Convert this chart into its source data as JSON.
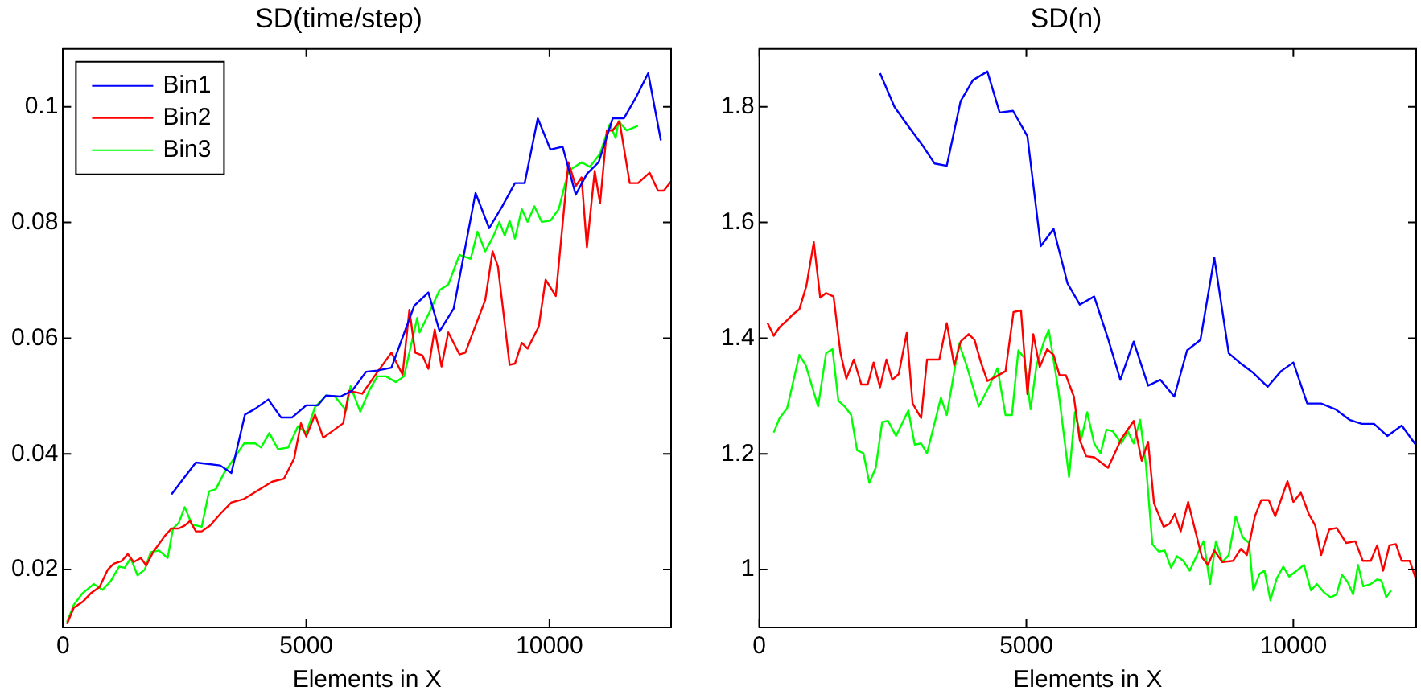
{
  "chart_data": [
    {
      "type": "line",
      "title": "SD(time/step)",
      "xlabel": "Elements in X",
      "xlim": [
        0,
        12500
      ],
      "xticks": [
        0,
        5000,
        10000
      ],
      "ylim": [
        0.01,
        0.11
      ],
      "yticks": [
        0.02,
        0.04,
        0.06,
        0.08,
        0.1
      ],
      "grid": false,
      "legend": "top left",
      "marker": "none",
      "line_style": "solid",
      "series": [
        {
          "name": "Bin1",
          "color": "#0000ff",
          "x": [
            2230,
            2500,
            2730,
            3230,
            3460,
            3740,
            3950,
            4220,
            4480,
            4710,
            5000,
            5240,
            5410,
            5700,
            5940,
            6230,
            6460,
            6750,
            7220,
            7510,
            7740,
            8030,
            8480,
            8760,
            9030,
            9290,
            9490,
            9760,
            10020,
            10270,
            10540,
            10770,
            11010,
            11300,
            11530,
            11770,
            12030,
            12290
          ],
          "values": [
            0.033,
            0.036,
            0.0385,
            0.038,
            0.0367,
            0.0468,
            0.0478,
            0.0494,
            0.0463,
            0.0463,
            0.0484,
            0.0484,
            0.0501,
            0.0499,
            0.0509,
            0.0542,
            0.0544,
            0.0549,
            0.0656,
            0.0679,
            0.0612,
            0.0651,
            0.0851,
            0.079,
            0.0828,
            0.0868,
            0.0868,
            0.098,
            0.0926,
            0.0931,
            0.0848,
            0.0884,
            0.0904,
            0.098,
            0.098,
            0.1015,
            0.1058,
            0.0942
          ]
        },
        {
          "name": "Bin2",
          "color": "#ff0000",
          "x": [
            80,
            220,
            400,
            570,
            750,
            920,
            1040,
            1210,
            1330,
            1450,
            1600,
            1710,
            1850,
            2090,
            2230,
            2380,
            2500,
            2610,
            2730,
            2850,
            3020,
            3230,
            3460,
            3720,
            4010,
            4300,
            4540,
            4750,
            4890,
            5000,
            5180,
            5350,
            5760,
            5880,
            6150,
            6400,
            6750,
            6980,
            7120,
            7240,
            7390,
            7510,
            7640,
            7780,
            7920,
            8150,
            8270,
            8680,
            8830,
            8940,
            9180,
            9290,
            9430,
            9550,
            9780,
            9920,
            10130,
            10390,
            10540,
            10660,
            10770,
            10930,
            11040,
            11180,
            11300,
            11440,
            11650,
            11820,
            12060,
            12230,
            12350,
            12500
          ],
          "values": [
            0.0106,
            0.0134,
            0.0144,
            0.0159,
            0.017,
            0.02,
            0.021,
            0.0215,
            0.0227,
            0.0213,
            0.022,
            0.0207,
            0.023,
            0.0258,
            0.0271,
            0.0271,
            0.0276,
            0.0284,
            0.0266,
            0.0266,
            0.0276,
            0.0296,
            0.0316,
            0.0322,
            0.0337,
            0.0352,
            0.0357,
            0.0392,
            0.0453,
            0.043,
            0.0468,
            0.0428,
            0.0453,
            0.0509,
            0.0504,
            0.0534,
            0.0575,
            0.0537,
            0.0649,
            0.0575,
            0.057,
            0.0547,
            0.0615,
            0.0551,
            0.061,
            0.0572,
            0.0575,
            0.0666,
            0.075,
            0.0724,
            0.0554,
            0.0556,
            0.0592,
            0.0582,
            0.062,
            0.0701,
            0.0673,
            0.0904,
            0.0863,
            0.0878,
            0.0757,
            0.0889,
            0.0833,
            0.0959,
            0.0959,
            0.0975,
            0.0868,
            0.0868,
            0.0886,
            0.0855,
            0.0855,
            0.0871
          ]
        },
        {
          "name": "Bin3",
          "color": "#00ff00",
          "x": [
            80,
            220,
            400,
            630,
            810,
            980,
            1150,
            1270,
            1390,
            1530,
            1680,
            1800,
            1970,
            2150,
            2260,
            2380,
            2500,
            2650,
            2850,
            3000,
            3140,
            3310,
            3490,
            3720,
            3950,
            4070,
            4240,
            4420,
            4630,
            4830,
            5000,
            5180,
            5410,
            5590,
            5820,
            5910,
            6110,
            6290,
            6460,
            6640,
            6840,
            7010,
            7280,
            7330,
            7540,
            7740,
            7920,
            8150,
            8380,
            8520,
            8680,
            8850,
            8970,
            9080,
            9180,
            9290,
            9430,
            9550,
            9690,
            9840,
            10020,
            10190,
            10390,
            10660,
            10830,
            11040,
            11240,
            11360,
            11420,
            11590,
            11820
          ],
          "values": [
            0.0109,
            0.0139,
            0.0159,
            0.0175,
            0.0165,
            0.018,
            0.0205,
            0.0203,
            0.022,
            0.019,
            0.02,
            0.023,
            0.0233,
            0.022,
            0.0271,
            0.0281,
            0.0308,
            0.0278,
            0.0274,
            0.0335,
            0.0339,
            0.0367,
            0.0389,
            0.0418,
            0.0418,
            0.0411,
            0.0436,
            0.0408,
            0.0411,
            0.0448,
            0.0436,
            0.0481,
            0.0501,
            0.0499,
            0.0475,
            0.0517,
            0.0473,
            0.0509,
            0.0534,
            0.0534,
            0.0524,
            0.0534,
            0.0635,
            0.061,
            0.0646,
            0.0683,
            0.0693,
            0.0744,
            0.0737,
            0.0784,
            0.075,
            0.0777,
            0.0801,
            0.0777,
            0.0803,
            0.0772,
            0.0823,
            0.0801,
            0.0828,
            0.0801,
            0.0803,
            0.0823,
            0.0889,
            0.0904,
            0.0896,
            0.0919,
            0.097,
            0.0946,
            0.0975,
            0.0959,
            0.0967
          ]
        }
      ]
    },
    {
      "type": "line",
      "title": "SD(n)",
      "xlabel": "Elements in X",
      "xlim": [
        0,
        12300
      ],
      "xticks": [
        0,
        5000,
        10000
      ],
      "ylim": [
        0.9,
        1.9
      ],
      "yticks": [
        1,
        1.2,
        1.4,
        1.6,
        1.8
      ],
      "grid": false,
      "marker": "none",
      "line_style": "solid",
      "series": [
        {
          "color": "#0000ff",
          "x": [
            2260,
            2530,
            2760,
            3050,
            3280,
            3510,
            3770,
            4000,
            4270,
            4500,
            4750,
            5020,
            5270,
            5510,
            5770,
            6000,
            6270,
            6530,
            6760,
            7010,
            7280,
            7510,
            7770,
            8010,
            8260,
            8520,
            8790,
            9020,
            9250,
            9520,
            9770,
            10000,
            10260,
            10520,
            10790,
            11050,
            11280,
            11510,
            11760,
            12030,
            12290
          ],
          "values": [
            1.858,
            1.8,
            1.77,
            1.734,
            1.702,
            1.698,
            1.81,
            1.846,
            1.861,
            1.79,
            1.793,
            1.749,
            1.559,
            1.589,
            1.495,
            1.458,
            1.472,
            1.399,
            1.328,
            1.394,
            1.318,
            1.328,
            1.299,
            1.379,
            1.397,
            1.539,
            1.374,
            1.356,
            1.34,
            1.316,
            1.343,
            1.358,
            1.287,
            1.287,
            1.277,
            1.259,
            1.252,
            1.252,
            1.231,
            1.249,
            1.216
          ]
        },
        {
          "color": "#ff0000",
          "x": [
            150,
            270,
            380,
            520,
            640,
            750,
            880,
            1020,
            1140,
            1250,
            1390,
            1520,
            1630,
            1770,
            1910,
            2030,
            2140,
            2260,
            2380,
            2490,
            2610,
            2760,
            2870,
            3030,
            3140,
            3370,
            3510,
            3650,
            3770,
            3920,
            4030,
            4150,
            4270,
            4420,
            4610,
            4760,
            4900,
            5020,
            5130,
            5250,
            5390,
            5510,
            5620,
            5740,
            5890,
            6000,
            6120,
            6270,
            6530,
            6780,
            7010,
            7160,
            7280,
            7390,
            7570,
            7680,
            7780,
            7890,
            8030,
            8150,
            8290,
            8400,
            8520,
            8670,
            8870,
            9020,
            9130,
            9280,
            9400,
            9540,
            9660,
            9890,
            10000,
            10140,
            10290,
            10410,
            10520,
            10670,
            10810,
            10990,
            11160,
            11300,
            11450,
            11570,
            11680,
            11800,
            11920,
            12030,
            12180,
            12290
          ],
          "values": [
            1.427,
            1.404,
            1.419,
            1.431,
            1.442,
            1.45,
            1.49,
            1.566,
            1.47,
            1.478,
            1.472,
            1.374,
            1.33,
            1.363,
            1.32,
            1.32,
            1.358,
            1.315,
            1.363,
            1.328,
            1.338,
            1.409,
            1.287,
            1.262,
            1.363,
            1.363,
            1.426,
            1.353,
            1.394,
            1.407,
            1.397,
            1.358,
            1.326,
            1.333,
            1.343,
            1.445,
            1.448,
            1.303,
            1.407,
            1.35,
            1.381,
            1.371,
            1.336,
            1.336,
            1.299,
            1.224,
            1.196,
            1.194,
            1.176,
            1.226,
            1.257,
            1.188,
            1.221,
            1.115,
            1.074,
            1.079,
            1.096,
            1.066,
            1.117,
            1.072,
            1.021,
            1.008,
            1.033,
            1.013,
            1.015,
            1.036,
            1.025,
            1.092,
            1.12,
            1.12,
            1.092,
            1.153,
            1.117,
            1.133,
            1.096,
            1.076,
            1.025,
            1.069,
            1.072,
            1.046,
            1.049,
            1.015,
            1.015,
            1.042,
            0.998,
            1.042,
            1.044,
            1.015,
            1.015,
            0.985
          ]
        },
        {
          "color": "#00ff00",
          "x": [
            270,
            380,
            520,
            750,
            870,
            1100,
            1250,
            1370,
            1480,
            1600,
            1720,
            1830,
            1950,
            2060,
            2180,
            2300,
            2410,
            2560,
            2790,
            2910,
            3030,
            3140,
            3400,
            3510,
            3740,
            3880,
            4110,
            4300,
            4460,
            4610,
            4730,
            4850,
            4960,
            5080,
            5190,
            5330,
            5420,
            5600,
            5800,
            5910,
            6030,
            6140,
            6270,
            6390,
            6500,
            6620,
            6780,
            6900,
            7010,
            7130,
            7240,
            7360,
            7480,
            7590,
            7710,
            7820,
            7940,
            8060,
            8210,
            8320,
            8440,
            8550,
            8670,
            8790,
            8920,
            9050,
            9170,
            9250,
            9370,
            9460,
            9570,
            9690,
            9810,
            9920,
            10060,
            10200,
            10330,
            10440,
            10580,
            10700,
            10810,
            10910,
            11020,
            11120,
            11210,
            11310,
            11450,
            11570,
            11650,
            11740,
            11830
          ],
          "values": [
            1.237,
            1.262,
            1.279,
            1.371,
            1.353,
            1.282,
            1.374,
            1.381,
            1.292,
            1.282,
            1.267,
            1.206,
            1.201,
            1.15,
            1.176,
            1.255,
            1.257,
            1.231,
            1.275,
            1.216,
            1.218,
            1.201,
            1.297,
            1.267,
            1.391,
            1.353,
            1.282,
            1.316,
            1.348,
            1.267,
            1.267,
            1.379,
            1.366,
            1.277,
            1.353,
            1.394,
            1.414,
            1.31,
            1.16,
            1.272,
            1.226,
            1.272,
            1.218,
            1.201,
            1.242,
            1.239,
            1.218,
            1.239,
            1.218,
            1.259,
            1.181,
            1.044,
            1.031,
            1.033,
            1.003,
            1.023,
            1.015,
            0.998,
            1.028,
            1.049,
            0.975,
            1.049,
            1.013,
            1.025,
            1.092,
            1.056,
            1.046,
            0.964,
            0.993,
            0.998,
            0.947,
            0.985,
            1.005,
            0.988,
            0.998,
            1.008,
            0.964,
            0.975,
            0.96,
            0.952,
            0.957,
            0.991,
            0.978,
            0.957,
            1.008,
            0.971,
            0.975,
            0.983,
            0.981,
            0.952,
            0.964
          ]
        }
      ]
    }
  ]
}
